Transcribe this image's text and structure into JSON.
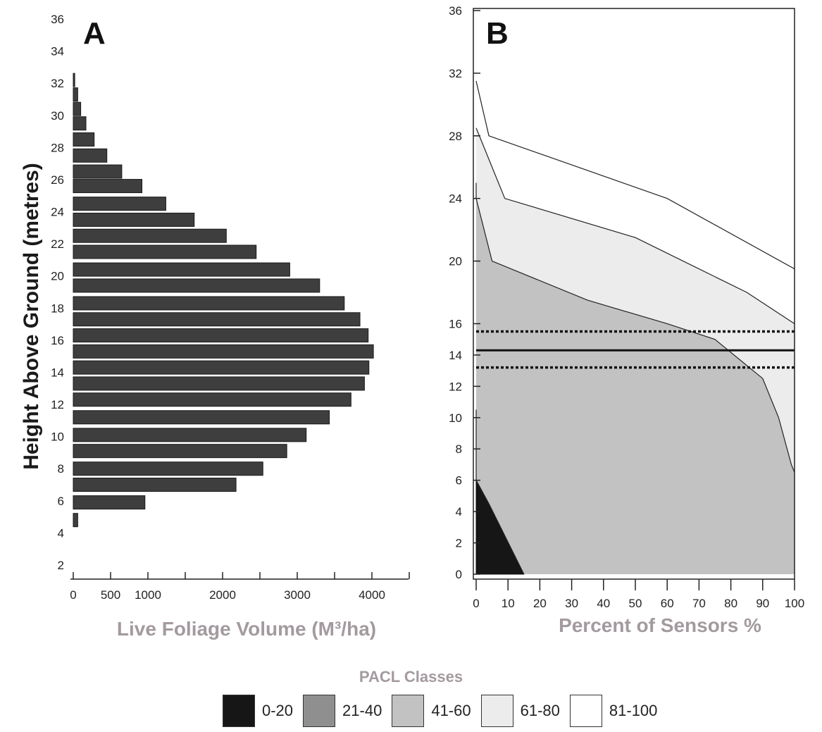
{
  "chart_data": [
    {
      "type": "bar",
      "orientation": "horizontal",
      "panel": "A",
      "xlabel": "Live Foliage Volume (M³/ha)",
      "ylabel": "Height Above Ground (metres)",
      "xlim": [
        0,
        4500
      ],
      "ylim": [
        0,
        36
      ],
      "xticks": [
        "0",
        "500",
        "1000",
        "2000",
        "3000",
        "4000"
      ],
      "yticks": [
        "2",
        "4",
        "6",
        "8",
        "10",
        "12",
        "14",
        "16",
        "18",
        "20",
        "22",
        "24",
        "26",
        "28",
        "30",
        "32",
        "34",
        "36"
      ],
      "categories": [
        4.8,
        5.9,
        7.0,
        8.0,
        9.1,
        10.1,
        11.2,
        12.3,
        13.3,
        14.3,
        15.3,
        16.3,
        17.3,
        18.3,
        19.4,
        20.4,
        21.5,
        22.5,
        23.5,
        24.5,
        25.6,
        26.5,
        27.5,
        28.5,
        29.5,
        30.4,
        31.3,
        32.2
      ],
      "values": [
        60,
        960,
        2180,
        2540,
        2860,
        3120,
        3430,
        3720,
        3900,
        3960,
        4020,
        3950,
        3840,
        3630,
        3300,
        2900,
        2450,
        2050,
        1620,
        1240,
        920,
        650,
        450,
        280,
        170,
        100,
        60,
        20
      ]
    },
    {
      "type": "area",
      "panel": "B",
      "xlabel": "Percent of Sensors %",
      "ylabel": "",
      "xlim": [
        0,
        100
      ],
      "ylim": [
        0,
        36
      ],
      "xticks": [
        "0",
        "10",
        "20",
        "30",
        "40",
        "50",
        "60",
        "70",
        "80",
        "90",
        "100"
      ],
      "yticks": [
        "0",
        "2",
        "4",
        "6",
        "8",
        "10",
        "12",
        "14",
        "16",
        "20",
        "24",
        "28",
        "32",
        "36"
      ],
      "boundaries": [
        {
          "class": "0-20",
          "x": [
            0,
            0,
            4,
            15
          ],
          "y": [
            10.5,
            6,
            4.5,
            0
          ]
        },
        {
          "class": "21-40",
          "x": [
            0,
            0,
            5,
            35,
            60,
            75,
            90,
            95,
            99,
            100
          ],
          "y": [
            25,
            24,
            20,
            17.5,
            16,
            15,
            12.5,
            10,
            7,
            6.5
          ]
        },
        {
          "class": "41-60",
          "x": [
            0,
            1,
            9,
            50,
            85,
            100
          ],
          "y": [
            28.5,
            28,
            24,
            21.5,
            18,
            16
          ]
        },
        {
          "class": "61-80",
          "x": [
            0,
            4,
            25,
            60,
            100
          ],
          "y": [
            31.5,
            28,
            26.5,
            24,
            19.5
          ]
        }
      ],
      "reference_lines": [
        {
          "style": "solid",
          "y": 14.3
        },
        {
          "style": "dotted",
          "y": 15.5
        },
        {
          "style": "dotted",
          "y": 13.2
        }
      ]
    }
  ],
  "panels": {
    "a": {
      "letter": "A"
    },
    "b": {
      "letter": "B"
    }
  },
  "legend": {
    "title": "PACL Classes",
    "items": [
      {
        "label": "0-20",
        "color": "#161616"
      },
      {
        "label": "21-40",
        "color": "#8f8f8f"
      },
      {
        "label": "41-60",
        "color": "#c2c2c2"
      },
      {
        "label": "61-80",
        "color": "#ececec"
      },
      {
        "label": "81-100",
        "color": "#ffffff"
      }
    ]
  },
  "colors": {
    "bar_fill": "#3e3e3e",
    "axis_title_grey": "#a39a9f"
  }
}
